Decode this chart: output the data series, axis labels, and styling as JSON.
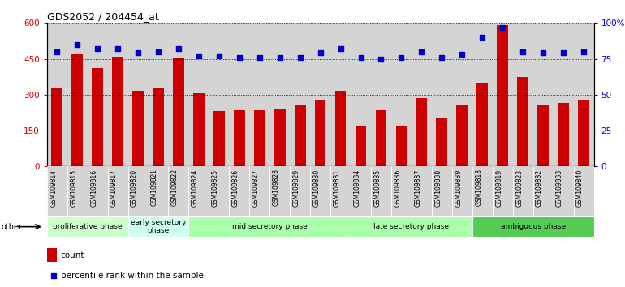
{
  "title": "GDS2052 / 204454_at",
  "samples": [
    "GSM109814",
    "GSM109815",
    "GSM109816",
    "GSM109817",
    "GSM109820",
    "GSM109821",
    "GSM109822",
    "GSM109824",
    "GSM109825",
    "GSM109826",
    "GSM109827",
    "GSM109828",
    "GSM109829",
    "GSM109830",
    "GSM109831",
    "GSM109834",
    "GSM109835",
    "GSM109836",
    "GSM109837",
    "GSM109838",
    "GSM109839",
    "GSM109818",
    "GSM109819",
    "GSM109823",
    "GSM109832",
    "GSM109833",
    "GSM109840"
  ],
  "counts": [
    325,
    470,
    410,
    460,
    315,
    330,
    455,
    305,
    230,
    235,
    235,
    240,
    255,
    280,
    315,
    170,
    235,
    170,
    285,
    200,
    260,
    350,
    590,
    375,
    260,
    265,
    280
  ],
  "percentiles": [
    80,
    85,
    82,
    82,
    79,
    80,
    82,
    77,
    77,
    76,
    76,
    76,
    76,
    79,
    82,
    76,
    75,
    76,
    80,
    76,
    78,
    90,
    97,
    80,
    79,
    79,
    80
  ],
  "phases": [
    {
      "name": "proliferative phase",
      "start": 0,
      "end": 4,
      "color": "#ccffcc"
    },
    {
      "name": "early secretory\nphase",
      "start": 4,
      "end": 7,
      "color": "#ccffee"
    },
    {
      "name": "mid secretory phase",
      "start": 7,
      "end": 15,
      "color": "#aaffaa"
    },
    {
      "name": "late secretory phase",
      "start": 15,
      "end": 21,
      "color": "#aaffaa"
    },
    {
      "name": "ambiguous phase",
      "start": 21,
      "end": 27,
      "color": "#55cc55"
    }
  ],
  "bar_color": "#cc0000",
  "dot_color": "#0000cc",
  "ylim_left": [
    0,
    600
  ],
  "ylim_right": [
    0,
    100
  ],
  "yticks_left": [
    0,
    150,
    300,
    450,
    600
  ],
  "yticks_right": [
    0,
    25,
    50,
    75,
    100
  ],
  "col_bg_color": "#d4d4d4",
  "legend_square_color": "#cc0000",
  "legend_dot_color": "#0000cc"
}
